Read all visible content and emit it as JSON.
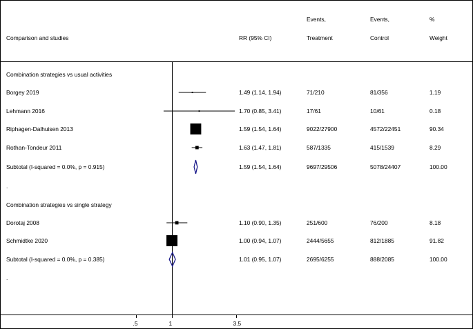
{
  "header": {
    "studies": "Comparison and studies",
    "rr": "RR (95% CI)",
    "events_t_line1": "Events,",
    "events_t_line2": "Treatment",
    "events_c_line1": "Events,",
    "events_c_line2": "Control",
    "weight_line1": "%",
    "weight_line2": "Weight"
  },
  "chart_data": {
    "type": "forest",
    "x_axis": {
      "scale": "log",
      "null_line": 1,
      "ticks": [
        0.5,
        1,
        3.5
      ],
      "tick_labels": [
        ".5",
        "1",
        "3.5"
      ]
    },
    "rows": [
      {
        "kind": "group",
        "label": "Combination strategies vs usual activities"
      },
      {
        "kind": "study",
        "label": "Borgey 2019",
        "rr": 1.49,
        "lo": 1.14,
        "hi": 1.94,
        "rr_text": "1.49 (1.14, 1.94)",
        "events_t": "71/210",
        "events_c": "81/356",
        "weight": "1.19",
        "weight_value": 1.19
      },
      {
        "kind": "study",
        "label": "Lehmann 2016",
        "rr": 1.7,
        "lo": 0.85,
        "hi": 3.41,
        "rr_text": "1.70 (0.85, 3.41)",
        "events_t": "17/61",
        "events_c": "10/61",
        "weight": "0.18",
        "weight_value": 0.18
      },
      {
        "kind": "study",
        "label": "Riphagen-Dalhuisen 2013",
        "rr": 1.59,
        "lo": 1.54,
        "hi": 1.64,
        "rr_text": "1.59 (1.54, 1.64)",
        "events_t": "9022/27900",
        "events_c": "4572/22451",
        "weight": "90.34",
        "weight_value": 90.34
      },
      {
        "kind": "study",
        "label": "Rothan-Tondeur 2011",
        "rr": 1.63,
        "lo": 1.47,
        "hi": 1.81,
        "rr_text": "1.63 (1.47, 1.81)",
        "events_t": "587/1335",
        "events_c": "415/1539",
        "weight": "8.29",
        "weight_value": 8.29
      },
      {
        "kind": "subtotal",
        "label": "Subtotal  (I-squared = 0.0%, p = 0.915)",
        "rr": 1.59,
        "lo": 1.54,
        "hi": 1.64,
        "rr_text": "1.59 (1.54, 1.64)",
        "events_t": "9697/29506",
        "events_c": "5078/24407",
        "weight": "100.00"
      },
      {
        "kind": "dot",
        "label": "."
      },
      {
        "kind": "group",
        "label": "Combination strategies vs single strategy"
      },
      {
        "kind": "study",
        "label": "Dorotaj 2008",
        "rr": 1.1,
        "lo": 0.9,
        "hi": 1.35,
        "rr_text": "1.10 (0.90, 1.35)",
        "events_t": "251/600",
        "events_c": "76/200",
        "weight": "8.18",
        "weight_value": 8.18
      },
      {
        "kind": "study",
        "label": "Schmidtke 2020",
        "rr": 1.0,
        "lo": 0.94,
        "hi": 1.07,
        "rr_text": "1.00 (0.94, 1.07)",
        "events_t": "2444/5655",
        "events_c": "812/1885",
        "weight": "91.82",
        "weight_value": 91.82
      },
      {
        "kind": "subtotal",
        "label": "Subtotal  (I-squared = 0.0%, p = 0.385)",
        "rr": 1.01,
        "lo": 0.95,
        "hi": 1.07,
        "rr_text": "1.01 (0.95, 1.07)",
        "events_t": "2695/6255",
        "events_c": "888/2085",
        "weight": "100.00"
      },
      {
        "kind": "dot",
        "label": "."
      }
    ],
    "colors": {
      "diamond": "#1c1c8c",
      "marker": "#000000",
      "line": "#000000"
    }
  }
}
